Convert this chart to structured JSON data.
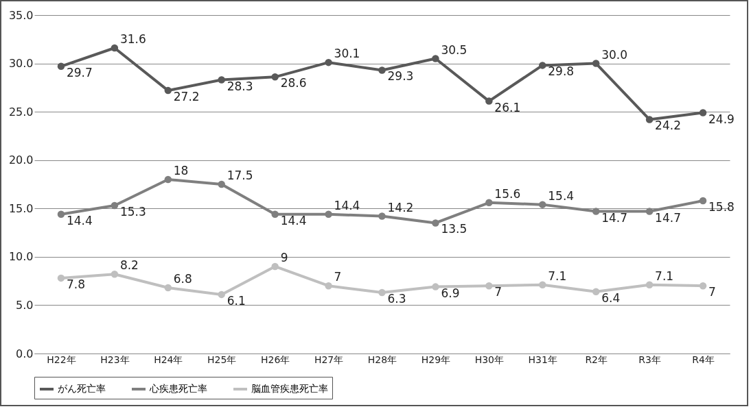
{
  "chart_data": {
    "type": "line",
    "categories": [
      "H22年",
      "H23年",
      "H24年",
      "H25年",
      "H26年",
      "H27年",
      "H28年",
      "H29年",
      "H30年",
      "H31年",
      "R2年",
      "R3年",
      "R4年"
    ],
    "series": [
      {
        "name": "がん死亡率",
        "color": "#595959",
        "values": [
          29.7,
          31.6,
          27.2,
          28.3,
          28.6,
          30.1,
          29.3,
          30.5,
          26.1,
          29.8,
          30.0,
          24.2,
          24.9
        ],
        "value_labels": [
          "29.7",
          "31.6",
          "27.2",
          "28.3",
          "28.6",
          "30.1",
          "29.3",
          "30.5",
          "26.1",
          "29.8",
          "30.0",
          "24.2",
          "24.9"
        ]
      },
      {
        "name": "心疾患死亡率",
        "color": "#7f7f7f",
        "values": [
          14.4,
          15.3,
          18,
          17.5,
          14.4,
          14.4,
          14.2,
          13.5,
          15.6,
          15.4,
          14.7,
          14.7,
          15.8
        ],
        "value_labels": [
          "14.4",
          "15.3",
          "18",
          "17.5",
          "14.4",
          "14.4",
          "14.2",
          "13.5",
          "15.6",
          "15.4",
          "14.7",
          "14.7",
          "15.8"
        ]
      },
      {
        "name": "脳血管疾患死亡率",
        "color": "#bfbfbf",
        "values": [
          7.8,
          8.2,
          6.8,
          6.1,
          9,
          7,
          6.3,
          6.9,
          7,
          7.1,
          6.4,
          7.1,
          7
        ],
        "value_labels": [
          "7.8",
          "8.2",
          "6.8",
          "6.1",
          "9",
          "7",
          "6.3",
          "6.9",
          "7",
          "7.1",
          "6.4",
          "7.1",
          "7"
        ]
      }
    ],
    "ylim": [
      0,
      35
    ],
    "yticks": [
      {
        "value": 0,
        "label": "0.0"
      },
      {
        "value": 5,
        "label": "5.0"
      },
      {
        "value": 10,
        "label": "10.0"
      },
      {
        "value": 15,
        "label": "15.0"
      },
      {
        "value": 20,
        "label": "20.0"
      },
      {
        "value": 25,
        "label": "25.0"
      },
      {
        "value": 30,
        "label": "30.0"
      },
      {
        "value": 35,
        "label": "35.0"
      }
    ],
    "grid": "y",
    "legend": "bottom",
    "marker": "circle",
    "line_style": "solid"
  }
}
